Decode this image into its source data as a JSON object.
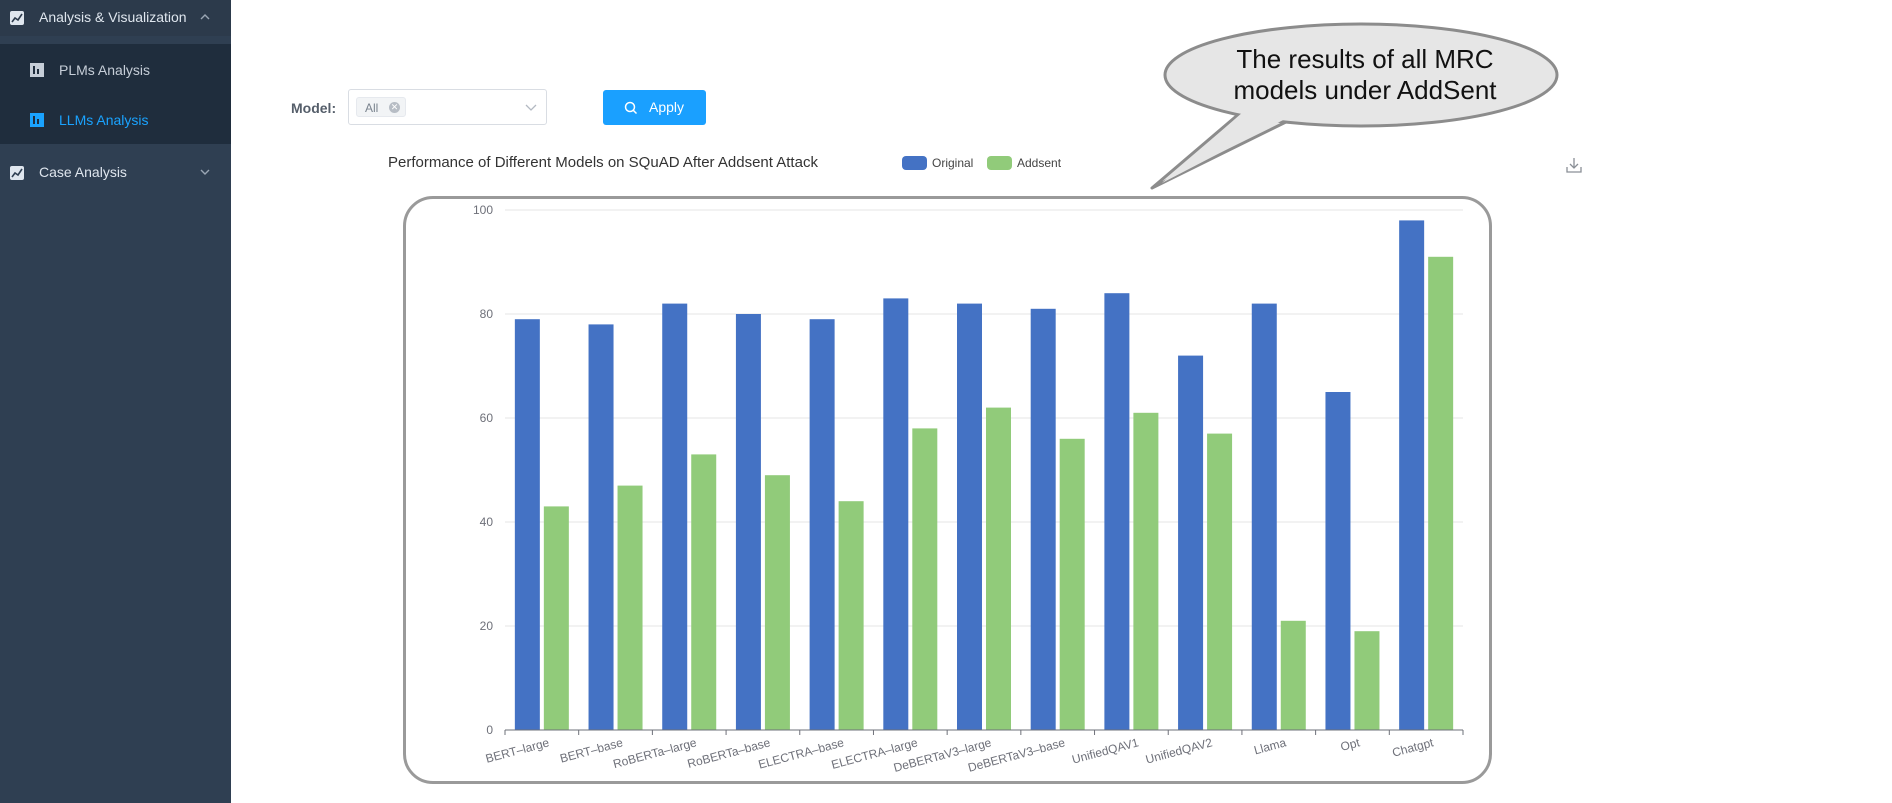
{
  "sidebar": {
    "groups": [
      {
        "label": "Analysis & Visualization",
        "icon": "chart-line-icon"
      },
      {
        "label": "Case Analysis",
        "icon": "chart-line-icon"
      }
    ],
    "items": [
      {
        "label": "PLMs Analysis",
        "icon": "bar-chart-icon",
        "active": false
      },
      {
        "label": "LLMs Analysis",
        "icon": "bar-chart-icon",
        "active": true
      }
    ]
  },
  "filter": {
    "model_label": "Model:",
    "selected_tag": "All",
    "apply_label": "Apply"
  },
  "annotation": {
    "line1": "The results of all MRC",
    "line2": "models under AddSent"
  },
  "colors": {
    "original": "#4472c4",
    "addsent": "#91cb7a",
    "accent": "#1aa0ff"
  },
  "chart_data": {
    "type": "bar",
    "title": "Performance of Different Models on SQuAD After Addsent Attack",
    "categories": [
      "BERT–large",
      "BERT–base",
      "RoBERTa–large",
      "RoBERTa–base",
      "ELECTRA–base",
      "ELECTRA–large",
      "DeBERTaV3–large",
      "DeBERTaV3–base",
      "UnifiedQAV1",
      "UnifiedQAV2",
      "Llama",
      "Opt",
      "Chatgpt"
    ],
    "series": [
      {
        "name": "Original",
        "values": [
          79,
          78,
          82,
          80,
          79,
          83,
          82,
          81,
          84,
          72,
          82,
          65,
          98
        ]
      },
      {
        "name": "Addsent",
        "values": [
          43,
          47,
          53,
          49,
          44,
          58,
          62,
          56,
          61,
          57,
          21,
          19,
          91
        ]
      }
    ],
    "yticks": [
      "0",
      "20",
      "40",
      "60",
      "80",
      "100"
    ],
    "ylim": [
      0,
      100
    ],
    "legend_position": "top",
    "grid": true
  }
}
